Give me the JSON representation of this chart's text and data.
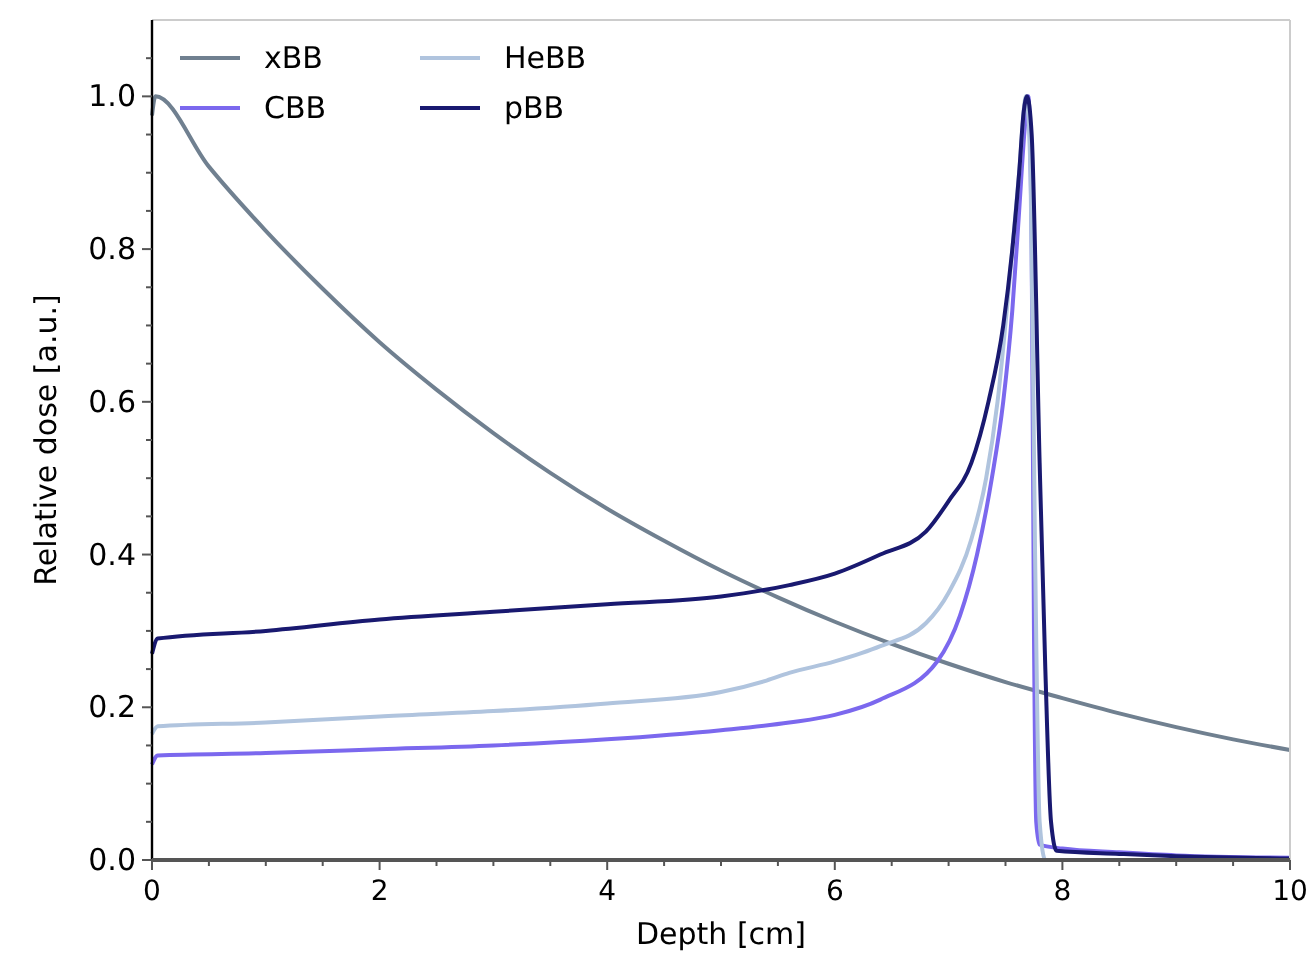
{
  "chart_data": {
    "type": "line",
    "xlabel": "Depth [cm]",
    "ylabel": "Relative dose [a.u.]",
    "xlim": [
      0,
      10
    ],
    "ylim": [
      0,
      1.1
    ],
    "xticks": [
      0,
      {
        "value": 0.5,
        "label": null
      },
      {
        "value": 1,
        "label": null
      },
      {
        "value": 1.5,
        "label": null
      },
      2,
      {
        "value": 2.5,
        "label": null
      },
      {
        "value": 3,
        "label": null
      },
      {
        "value": 3.5,
        "label": null
      },
      4,
      {
        "value": 4.5,
        "label": null
      },
      {
        "value": 5,
        "label": null
      },
      {
        "value": 5.5,
        "label": null
      },
      6,
      {
        "value": 6.5,
        "label": null
      },
      {
        "value": 7,
        "label": null
      },
      {
        "value": 7.5,
        "label": null
      },
      8,
      {
        "value": 8.5,
        "label": null
      },
      {
        "value": 9,
        "label": null
      },
      {
        "value": 9.5,
        "label": null
      },
      10
    ],
    "yticks": [
      {
        "value": 0,
        "label": "0.0"
      },
      {
        "value": 0.05,
        "label": null
      },
      {
        "value": 0.1,
        "label": null
      },
      {
        "value": 0.15,
        "label": null
      },
      {
        "value": 0.2,
        "label": "0.2"
      },
      {
        "value": 0.25,
        "label": null
      },
      {
        "value": 0.3,
        "label": null
      },
      {
        "value": 0.35,
        "label": null
      },
      {
        "value": 0.4,
        "label": "0.4"
      },
      {
        "value": 0.45,
        "label": null
      },
      {
        "value": 0.5,
        "label": null
      },
      {
        "value": 0.55,
        "label": null
      },
      {
        "value": 0.6,
        "label": "0.6"
      },
      {
        "value": 0.65,
        "label": null
      },
      {
        "value": 0.7,
        "label": null
      },
      {
        "value": 0.75,
        "label": null
      },
      {
        "value": 0.8,
        "label": "0.8"
      },
      {
        "value": 0.85,
        "label": null
      },
      {
        "value": 0.9,
        "label": null
      },
      {
        "value": 0.95,
        "label": null
      },
      {
        "value": 1.0,
        "label": "1.0"
      },
      {
        "value": 1.05,
        "label": null
      }
    ],
    "grid": false,
    "legend": "top left",
    "line_style": "solid",
    "series": [
      {
        "name": "xBB",
        "color": "#708090",
        "x": [
          0,
          0.03,
          0.5,
          1,
          1.5,
          2,
          2.5,
          3,
          3.5,
          4,
          4.5,
          5,
          5.5,
          6,
          6.5,
          7,
          7.5,
          8,
          8.5,
          9,
          9.5,
          10
        ],
        "values": [
          0.975,
          1.0,
          0.908,
          0.824,
          0.748,
          0.678,
          0.616,
          0.559,
          0.507,
          0.46,
          0.418,
          0.379,
          0.344,
          0.312,
          0.283,
          0.257,
          0.233,
          0.212,
          0.192,
          0.174,
          0.158,
          0.144
        ]
      },
      {
        "name": "CBB",
        "color": "#7b68ee",
        "x": [
          0,
          0.05,
          1,
          2,
          3,
          4,
          5,
          5.6,
          6,
          6.4,
          6.9,
          7.1,
          7.25,
          7.38,
          7.48,
          7.56,
          7.62,
          7.67,
          7.7,
          7.73,
          7.75,
          7.77,
          7.8,
          8,
          8.5,
          9,
          10
        ],
        "values": [
          0.125,
          0.137,
          0.14,
          0.145,
          0.15,
          0.158,
          0.17,
          0.18,
          0.19,
          0.21,
          0.26,
          0.32,
          0.4,
          0.5,
          0.6,
          0.72,
          0.85,
          0.96,
          1.0,
          0.8,
          0.3,
          0.05,
          0.02,
          0.015,
          0.01,
          0.006,
          0.003
        ]
      },
      {
        "name": "HeBB",
        "color": "#b0c4de",
        "x": [
          0,
          0.05,
          1,
          2,
          3,
          4,
          5,
          5.4,
          5.6,
          6,
          6.4,
          6.8,
          7,
          7.2,
          7.33,
          7.43,
          7.53,
          7.62,
          7.68,
          7.72,
          7.76,
          7.8,
          7.85,
          10
        ],
        "values": [
          0.165,
          0.175,
          0.18,
          0.188,
          0.195,
          0.205,
          0.22,
          0.235,
          0.245,
          0.26,
          0.28,
          0.31,
          0.35,
          0.42,
          0.5,
          0.6,
          0.75,
          0.9,
          1.0,
          0.9,
          0.4,
          0.05,
          0.0,
          0.0
        ]
      },
      {
        "name": "pBB",
        "color": "#191970",
        "x": [
          0,
          0.05,
          1,
          2,
          3,
          4,
          5,
          5.6,
          6,
          6.4,
          6.8,
          7,
          7.2,
          7.35,
          7.48,
          7.56,
          7.62,
          7.66,
          7.69,
          7.73,
          7.8,
          7.85,
          7.9,
          7.95,
          8.5,
          9,
          10
        ],
        "values": [
          0.27,
          0.29,
          0.3,
          0.315,
          0.325,
          0.335,
          0.345,
          0.36,
          0.375,
          0.4,
          0.43,
          0.47,
          0.52,
          0.6,
          0.7,
          0.8,
          0.9,
          0.98,
          1.0,
          0.95,
          0.52,
          0.25,
          0.05,
          0.012,
          0.008,
          0.005,
          0.002
        ]
      }
    ]
  }
}
